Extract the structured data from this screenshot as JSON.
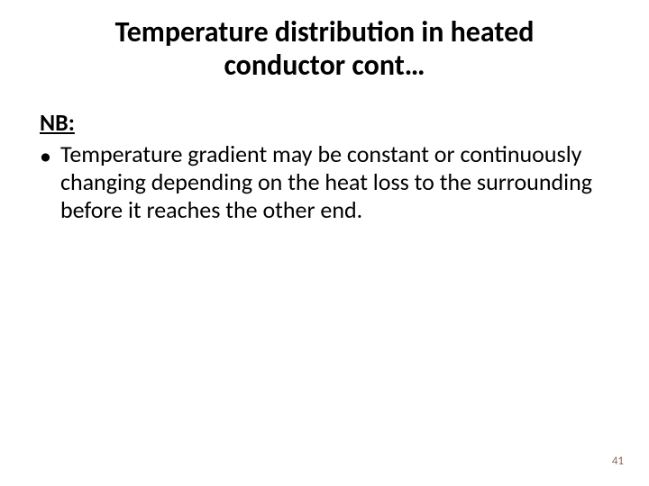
{
  "slide": {
    "title": "Temperature distribution in heated conductor cont…",
    "nb_label": "NB:",
    "bullet": {
      "marker": "•",
      "text": "Temperature gradient may be constant or continuously changing depending on the heat loss to the surrounding before it reaches the other end."
    },
    "page_number": "41"
  },
  "style": {
    "background_color": "#ffffff",
    "title_fontsize": 32,
    "title_weight": "bold",
    "title_color": "#000000",
    "body_fontsize": 26,
    "body_color": "#000000",
    "page_number_fontsize": 13,
    "page_number_color": "#8a6d5a"
  }
}
